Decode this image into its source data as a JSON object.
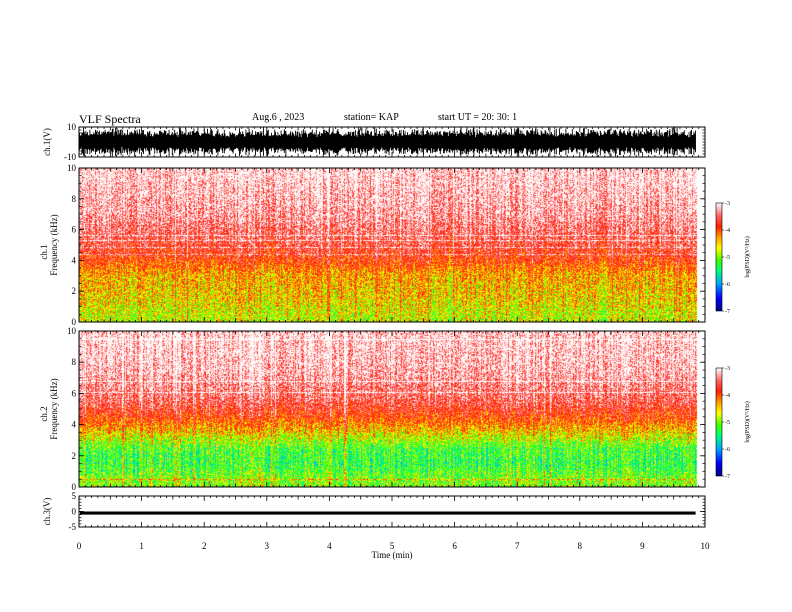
{
  "header": {
    "title": "VLF Spectra",
    "date": "Aug.6  , 2023",
    "station": "station= KAP",
    "start": "start  UT =   20: 30: 1"
  },
  "chart_data": [
    {
      "type": "line",
      "panel": "ch1-waveform",
      "ylabel": "ch.1(V)",
      "ylim": [
        -10,
        10
      ],
      "yticks": [
        "10",
        "-10"
      ],
      "xlim": [
        0,
        10
      ],
      "fill_color": "#000000",
      "description_values": {
        "amplitude_max": 10,
        "amplitude_min": -10,
        "data_end_min": 9.85
      }
    },
    {
      "type": "heatmap",
      "panel": "ch1-spectrogram",
      "ylabel": "ch.1\nFrequency  (kHz)",
      "ylabel_top": "ch.1",
      "ylabel_main": "Frequency  (kHz)",
      "ylim": [
        0,
        10
      ],
      "yticks": [
        "0",
        "2",
        "4",
        "6",
        "8",
        "10"
      ],
      "xlim": [
        0,
        10
      ],
      "data_end_min": 9.85,
      "intensity_profile": [
        {
          "freq_khz": 0.5,
          "level": -4.8
        },
        {
          "freq_khz": 1.5,
          "level": -4.6
        },
        {
          "freq_khz": 2.5,
          "level": -4.5
        },
        {
          "freq_khz": 3.2,
          "level": -4.4
        },
        {
          "freq_khz": 4.0,
          "level": -4.0
        },
        {
          "freq_khz": 5.0,
          "level": -3.7
        },
        {
          "freq_khz": 7.0,
          "level": -3.3
        },
        {
          "freq_khz": 9.5,
          "level": -3.1
        }
      ],
      "colorbar": {
        "min": -7,
        "max": -3,
        "ticks": [
          "-3",
          "-4",
          "-5",
          "-6",
          "-7"
        ],
        "label": "log(PSD)(V²/Hz)"
      }
    },
    {
      "type": "heatmap",
      "panel": "ch2-spectrogram",
      "ylabel_top": "ch.2",
      "ylabel_main": "Frequency  (kHz)",
      "ylim": [
        0,
        10
      ],
      "yticks": [
        "0",
        "2",
        "4",
        "6",
        "8",
        "10"
      ],
      "xlim": [
        0,
        10
      ],
      "data_end_min": 9.85,
      "intensity_profile": [
        {
          "freq_khz": 0.5,
          "level": -5.0
        },
        {
          "freq_khz": 1.5,
          "level": -5.3
        },
        {
          "freq_khz": 2.5,
          "level": -5.2
        },
        {
          "freq_khz": 3.5,
          "level": -4.6
        },
        {
          "freq_khz": 4.5,
          "level": -4.0
        },
        {
          "freq_khz": 5.5,
          "level": -3.6
        },
        {
          "freq_khz": 7.5,
          "level": -3.2
        },
        {
          "freq_khz": 9.5,
          "level": -3.1
        }
      ],
      "colorbar": {
        "min": -7,
        "max": -3,
        "ticks": [
          "-3",
          "-4",
          "-5",
          "-6",
          "-7"
        ],
        "label": "log(PSD)(V²/Hz)"
      }
    },
    {
      "type": "line",
      "panel": "ch3-waveform",
      "ylabel": "ch.3(V)",
      "ylim": [
        -5,
        5
      ],
      "yticks": [
        "5",
        "0",
        "-5"
      ],
      "xlim": [
        0,
        10
      ],
      "level_min": -1.0,
      "level_max": 0.0,
      "data_end_min": 9.85,
      "xlabel": "Time  (min)",
      "xticks": [
        "0",
        "1",
        "2",
        "3",
        "4",
        "5",
        "6",
        "7",
        "8",
        "9",
        "10"
      ]
    }
  ],
  "colors": {
    "background": "#ffffff",
    "axis": "#000000",
    "colormap": [
      "#000080",
      "#0000ff",
      "#00a0ff",
      "#00ff80",
      "#40ff00",
      "#c0ff00",
      "#ffff00",
      "#ffa000",
      "#ff3000",
      "#ff0000",
      "#ffd0d0",
      "#ffffff"
    ]
  }
}
